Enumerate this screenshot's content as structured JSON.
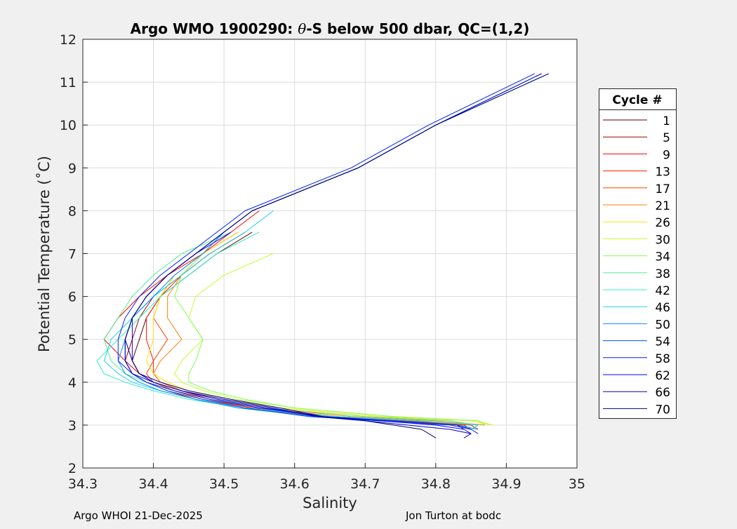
{
  "chart_data": {
    "type": "line",
    "title_parts": [
      "Argo WMO 1900290: ",
      "θ",
      "-S below 500 dbar,  QC=(1,2)"
    ],
    "xlabel": "Salinity",
    "ylabel": "Potential Temperature (˚C)",
    "xlim": [
      34.3,
      35
    ],
    "ylim": [
      2,
      12
    ],
    "xticks": [
      "34.3",
      "34.4",
      "34.5",
      "34.6",
      "34.7",
      "34.8",
      "34.9",
      "35"
    ],
    "yticks": [
      "2",
      "3",
      "4",
      "5",
      "6",
      "7",
      "8",
      "9",
      "10",
      "11",
      "12"
    ],
    "grid": true,
    "legend": {
      "title": "Cycle #",
      "placement": "right"
    },
    "theta_levels": [
      11.2,
      10,
      9,
      8,
      7.5,
      7,
      6.5,
      6,
      5.5,
      5,
      4.5,
      4.2,
      4,
      3.8,
      3.6,
      3.4,
      3.2,
      3.1,
      3.0,
      2.9,
      2.8,
      2.7
    ],
    "series": [
      {
        "name": "1",
        "color": "#600000",
        "salinity": [
          null,
          null,
          null,
          null,
          34.54,
          34.49,
          34.45,
          34.41,
          34.39,
          34.38,
          34.37,
          34.38,
          34.4,
          34.43,
          34.47,
          34.54,
          34.64,
          34.74,
          34.83,
          34.84,
          null,
          null
        ]
      },
      {
        "name": "5",
        "color": "#a00000",
        "salinity": [
          null,
          null,
          null,
          null,
          34.53,
          34.48,
          34.44,
          34.4,
          34.38,
          34.37,
          34.36,
          34.37,
          34.39,
          34.42,
          34.46,
          34.53,
          34.63,
          34.73,
          34.84,
          34.85,
          null,
          null
        ]
      },
      {
        "name": "9",
        "color": "#ff0000",
        "salinity": [
          null,
          null,
          null,
          34.55,
          34.51,
          34.47,
          34.42,
          34.38,
          34.35,
          34.33,
          34.36,
          34.38,
          34.4,
          34.44,
          34.48,
          34.55,
          34.66,
          34.76,
          34.85,
          34.86,
          null,
          null
        ]
      },
      {
        "name": "13",
        "color": "#ff1800",
        "salinity": [
          null,
          null,
          null,
          null,
          34.53,
          34.48,
          34.44,
          34.41,
          34.39,
          34.39,
          34.4,
          34.4,
          34.41,
          34.44,
          34.48,
          34.54,
          34.65,
          34.75,
          34.84,
          34.85,
          null,
          null
        ]
      },
      {
        "name": "17",
        "color": "#ff4000",
        "salinity": [
          null,
          null,
          null,
          null,
          34.52,
          34.47,
          34.43,
          34.41,
          34.4,
          34.42,
          34.4,
          34.39,
          34.4,
          34.43,
          34.47,
          34.54,
          34.66,
          34.76,
          34.85,
          34.86,
          null,
          null
        ]
      },
      {
        "name": "21",
        "color": "#ff8000",
        "salinity": [
          null,
          null,
          null,
          null,
          34.52,
          34.47,
          34.44,
          34.42,
          34.42,
          34.44,
          34.41,
          34.4,
          34.41,
          34.44,
          34.49,
          34.56,
          34.68,
          34.8,
          34.87,
          null,
          null,
          null
        ]
      },
      {
        "name": "26",
        "color": "#ffe000",
        "salinity": [
          null,
          null,
          null,
          null,
          34.52,
          34.47,
          34.43,
          34.41,
          34.4,
          34.4,
          34.39,
          34.4,
          34.42,
          34.45,
          34.5,
          34.58,
          34.72,
          34.85,
          34.88,
          null,
          null,
          null
        ]
      },
      {
        "name": "30",
        "color": "#c0ff30",
        "salinity": [
          null,
          null,
          null,
          null,
          null,
          34.57,
          34.5,
          34.46,
          34.45,
          34.47,
          34.44,
          34.43,
          34.44,
          34.47,
          34.52,
          34.6,
          34.74,
          34.86,
          34.88,
          null,
          null,
          null
        ]
      },
      {
        "name": "34",
        "color": "#80ff50",
        "salinity": [
          null,
          null,
          null,
          null,
          null,
          34.47,
          34.44,
          34.43,
          34.45,
          34.47,
          34.46,
          34.45,
          34.45,
          34.48,
          34.53,
          34.6,
          34.74,
          34.86,
          34.87,
          null,
          null,
          null
        ]
      },
      {
        "name": "38",
        "color": "#50f090",
        "salinity": [
          null,
          null,
          null,
          null,
          34.51,
          34.44,
          34.4,
          34.37,
          34.35,
          34.33,
          34.34,
          34.36,
          34.39,
          34.43,
          34.48,
          34.56,
          34.7,
          34.82,
          34.86,
          null,
          null,
          null
        ]
      },
      {
        "name": "42",
        "color": "#30f0c0",
        "salinity": [
          null,
          null,
          null,
          null,
          34.55,
          34.49,
          34.45,
          34.41,
          34.38,
          34.35,
          34.32,
          34.33,
          34.36,
          34.4,
          34.45,
          34.53,
          34.66,
          34.78,
          34.86,
          null,
          null,
          null
        ]
      },
      {
        "name": "46",
        "color": "#20d0f0",
        "salinity": [
          null,
          null,
          null,
          34.57,
          34.53,
          34.48,
          34.44,
          34.4,
          34.37,
          34.34,
          34.33,
          34.35,
          34.37,
          34.41,
          34.46,
          34.53,
          34.65,
          34.77,
          34.86,
          34.85,
          null,
          null
        ]
      },
      {
        "name": "50",
        "color": "#0090ff",
        "salinity": [
          34.96,
          34.8,
          34.69,
          34.54,
          34.5,
          34.47,
          34.43,
          34.4,
          34.37,
          34.36,
          34.35,
          34.36,
          34.38,
          34.41,
          34.46,
          34.52,
          34.63,
          34.73,
          34.83,
          34.86,
          null,
          null
        ]
      },
      {
        "name": "54",
        "color": "#0050ff",
        "salinity": [
          34.95,
          34.8,
          34.69,
          34.54,
          34.5,
          34.46,
          34.42,
          34.39,
          34.37,
          34.36,
          34.36,
          34.37,
          34.39,
          34.42,
          34.47,
          34.53,
          34.62,
          34.72,
          34.82,
          34.85,
          null,
          null
        ]
      },
      {
        "name": "58",
        "color": "#0020ff",
        "salinity": [
          34.94,
          34.79,
          34.68,
          34.53,
          34.49,
          34.45,
          34.41,
          34.38,
          34.36,
          34.35,
          34.35,
          34.37,
          34.39,
          34.43,
          34.48,
          34.55,
          34.64,
          34.74,
          34.83,
          34.85,
          34.86,
          null
        ]
      },
      {
        "name": "62",
        "color": "#0000ff",
        "salinity": [
          null,
          null,
          null,
          null,
          34.51,
          34.46,
          34.42,
          34.39,
          34.37,
          34.37,
          34.37,
          34.38,
          34.4,
          34.44,
          34.49,
          34.56,
          34.64,
          34.72,
          34.8,
          34.84,
          34.85,
          null
        ]
      },
      {
        "name": "66",
        "color": "#0000c0",
        "salinity": [
          34.95,
          34.8,
          34.69,
          34.54,
          34.5,
          34.46,
          34.42,
          34.39,
          34.37,
          34.36,
          34.36,
          34.37,
          34.4,
          34.44,
          34.5,
          34.57,
          34.63,
          34.7,
          34.76,
          34.82,
          34.85,
          34.84
        ]
      },
      {
        "name": "70",
        "color": "#000070",
        "salinity": [
          34.96,
          34.8,
          34.69,
          34.54,
          34.5,
          34.46,
          34.42,
          34.39,
          34.37,
          34.36,
          34.37,
          34.38,
          34.41,
          34.45,
          34.51,
          34.58,
          34.64,
          34.7,
          34.74,
          34.78,
          34.79,
          34.8
        ]
      }
    ]
  },
  "footer": {
    "left": "Argo WHOI 21-Dec-2025",
    "right": "Jon Turton at bodc"
  }
}
